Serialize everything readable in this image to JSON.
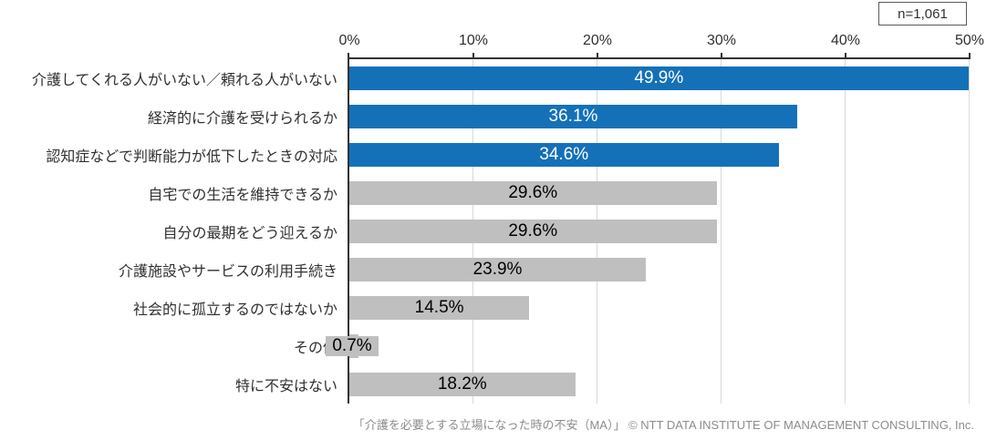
{
  "sample": {
    "label": "n=1,061"
  },
  "footer": {
    "text": "「介護を必要とする立場になった時の不安（MA）」 © NTT DATA INSTITUTE OF MANAGEMENT CONSULTING, Inc."
  },
  "chart_data": {
    "type": "bar",
    "orientation": "horizontal",
    "categories": [
      "介護してくれる人がいない／頼れる人がいない",
      "経済的に介護を受けられるか",
      "認知症などで判断能力が低下したときの対応",
      "自宅での生活を維持できるか",
      "自分の最期をどう迎えるか",
      "介護施設やサービスの利用手続き",
      "社会的に孤立するのではないか",
      "その他",
      "特に不安はない"
    ],
    "values": [
      49.9,
      36.1,
      34.6,
      29.6,
      29.6,
      23.9,
      14.5,
      0.7,
      18.2
    ],
    "bar_styles": [
      "highlight",
      "highlight",
      "highlight",
      "default",
      "default",
      "default",
      "default",
      "default",
      "default"
    ],
    "palette": {
      "highlight": {
        "bar": "#1471b8",
        "label": "#ffffff"
      },
      "default": {
        "bar": "#bfbfbf",
        "label": "#000000"
      }
    },
    "xaxis": {
      "ticks": [
        0,
        10,
        20,
        30,
        40,
        50
      ],
      "unit": "%",
      "max": 50,
      "position": "top",
      "grid": true
    },
    "grid_color": "#d9d9d9",
    "axis_color": "#333333",
    "sample_size_label": "n=1,061",
    "caption": "「介護を必要とする立場になった時の不安（MA）」 © NTT DATA INSTITUTE OF MANAGEMENT CONSULTING, Inc.",
    "legend": "none"
  }
}
